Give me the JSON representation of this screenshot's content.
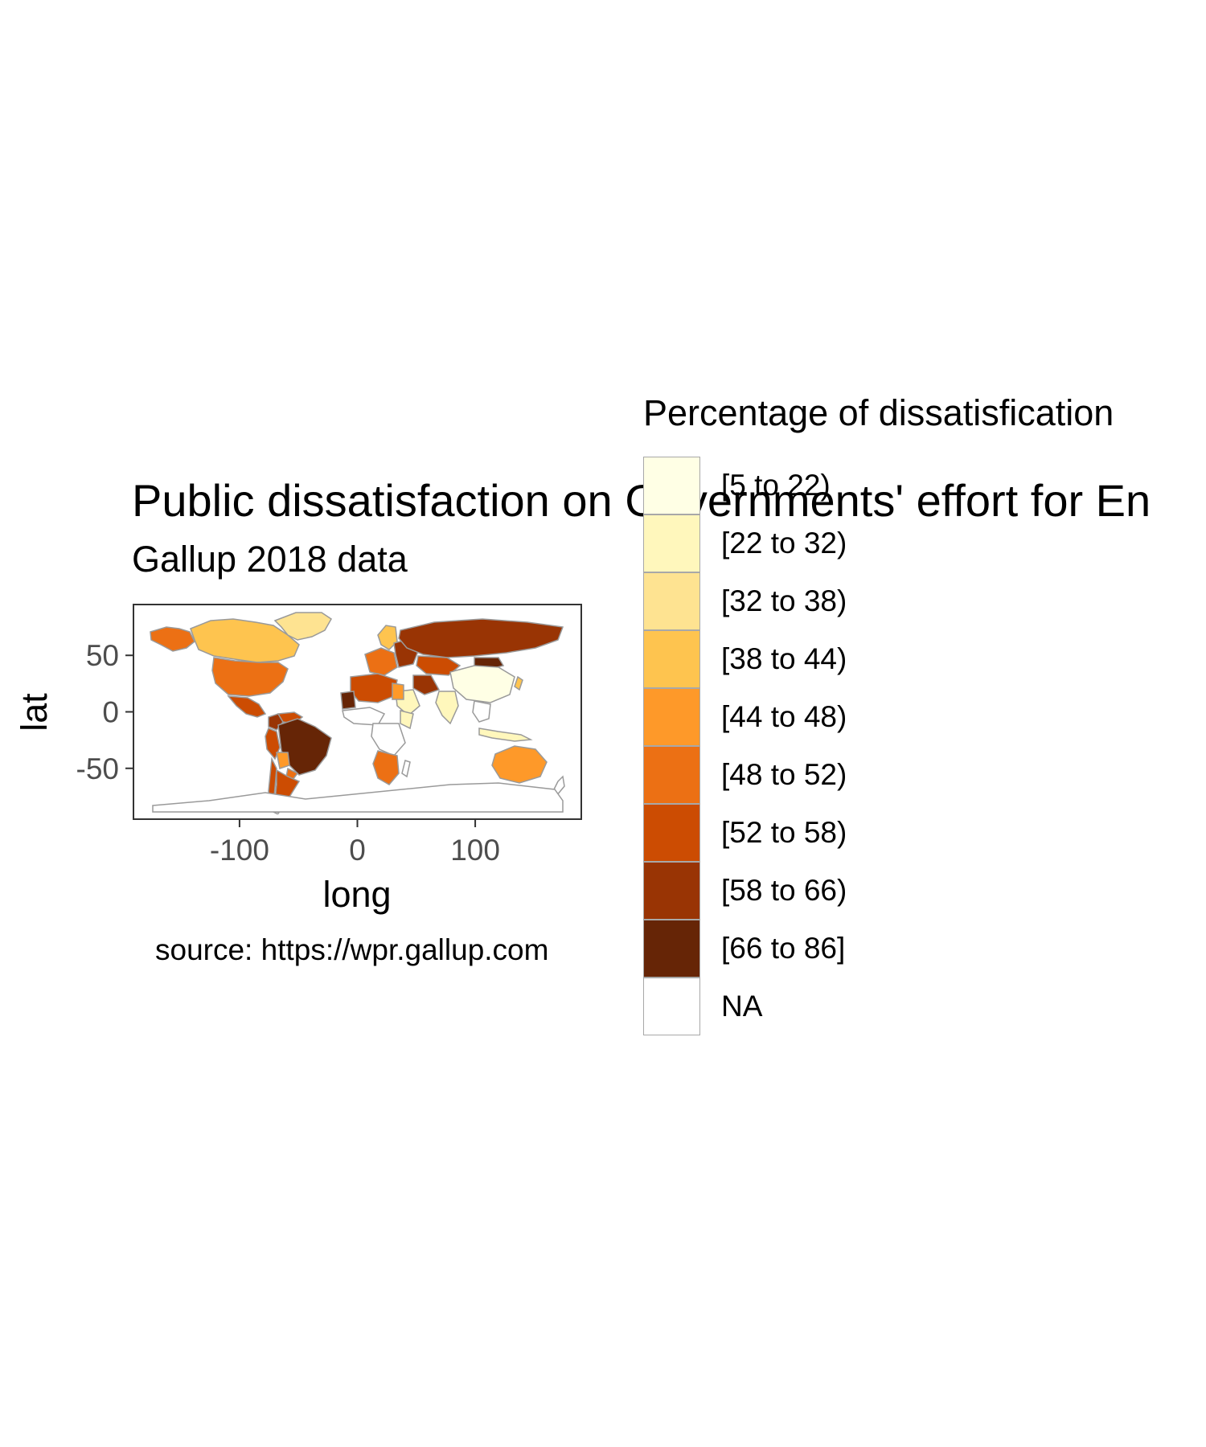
{
  "chart_data": {
    "type": "choropleth",
    "title": "Public dissatisfaction on Governments' effort for En",
    "subtitle": "Gallup 2018 data",
    "caption": "source: https://wpr.gallup.com",
    "xlabel": "long",
    "ylabel": "lat",
    "xlim": [
      -190,
      190
    ],
    "ylim": [
      -95,
      95
    ],
    "x_ticks": [
      -100,
      0,
      100
    ],
    "x_tick_labels": [
      "-100",
      "0",
      "100"
    ],
    "y_ticks": [
      50,
      0,
      -50
    ],
    "y_tick_labels": [
      "50",
      "0",
      "-50"
    ],
    "grid": false,
    "legend_position": "right",
    "legend": {
      "title": "Percentage of dissatisfication",
      "items": [
        {
          "label": "[5 to 22)",
          "color": "#ffffe5"
        },
        {
          "label": "[22 to 32)",
          "color": "#fff7bc"
        },
        {
          "label": "[32 to 38)",
          "color": "#fee391"
        },
        {
          "label": "[38 to 44)",
          "color": "#fec44f"
        },
        {
          "label": "[44 to 48)",
          "color": "#fe9929"
        },
        {
          "label": "[48 to 52)",
          "color": "#ec7014"
        },
        {
          "label": "[52 to 58)",
          "color": "#cc4c02"
        },
        {
          "label": "[58 to 66)",
          "color": "#993404"
        },
        {
          "label": "[66 to 86]",
          "color": "#662506"
        },
        {
          "label": "NA",
          "color": "#ffffff"
        }
      ]
    },
    "regions": [
      {
        "region": "Canada",
        "class": "[38 to 44)"
      },
      {
        "region": "Alaska",
        "class": "[48 to 52)"
      },
      {
        "region": "United States",
        "class": "[48 to 52)"
      },
      {
        "region": "Mexico",
        "class": "[52 to 58)"
      },
      {
        "region": "Greenland",
        "class": "[32 to 38)"
      },
      {
        "region": "Colombia",
        "class": "[58 to 66)"
      },
      {
        "region": "Venezuela",
        "class": "[52 to 58)"
      },
      {
        "region": "Peru",
        "class": "[52 to 58)"
      },
      {
        "region": "Brazil",
        "class": "[66 to 86]"
      },
      {
        "region": "Bolivia",
        "class": "[44 to 48)"
      },
      {
        "region": "Paraguay",
        "class": "[48 to 52)"
      },
      {
        "region": "Chile",
        "class": "[52 to 58)"
      },
      {
        "region": "Argentina",
        "class": "[52 to 58)"
      },
      {
        "region": "Scandinavia",
        "class": "[38 to 44)"
      },
      {
        "region": "Western Europe",
        "class": "[48 to 52)"
      },
      {
        "region": "Eastern Europe",
        "class": "[58 to 66)"
      },
      {
        "region": "Russia",
        "class": "[58 to 66)"
      },
      {
        "region": "Kazakhstan",
        "class": "[52 to 58)"
      },
      {
        "region": "Mongolia",
        "class": "[66 to 86]"
      },
      {
        "region": "China",
        "class": "[5 to 22)"
      },
      {
        "region": "India",
        "class": "[22 to 32)"
      },
      {
        "region": "Iran",
        "class": "[58 to 66)"
      },
      {
        "region": "Saudi Arabia",
        "class": "[22 to 32)"
      },
      {
        "region": "North Africa",
        "class": "[52 to 58)"
      },
      {
        "region": "Mauritania",
        "class": "[66 to 86]"
      },
      {
        "region": "Egypt",
        "class": "[44 to 48)"
      },
      {
        "region": "Ethiopia",
        "class": "[22 to 32)"
      },
      {
        "region": "Southern Africa",
        "class": "[48 to 52)"
      },
      {
        "region": "Australia",
        "class": "[44 to 48)"
      },
      {
        "region": "Japan",
        "class": "[38 to 44)"
      },
      {
        "region": "Indonesia",
        "class": "[22 to 32)"
      },
      {
        "region": "Antarctica",
        "class": "NA"
      }
    ]
  }
}
